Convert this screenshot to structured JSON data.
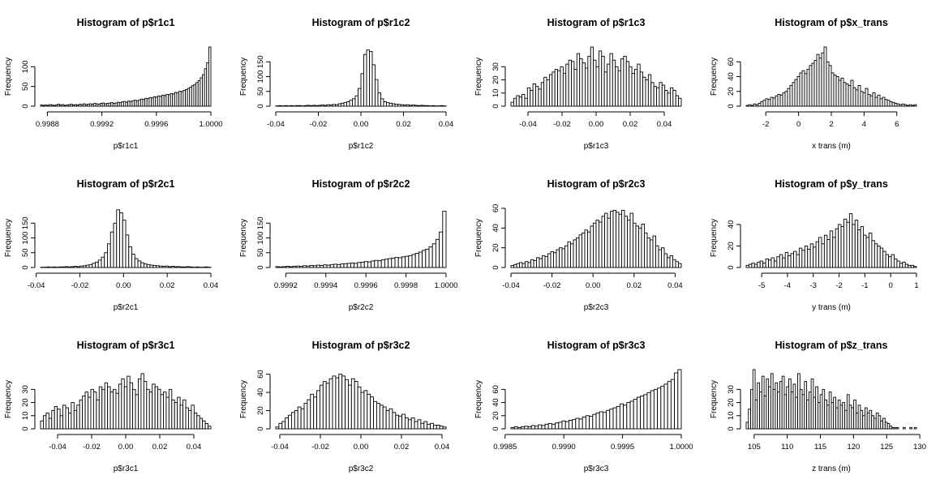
{
  "chart_data": [
    {
      "type": "bar",
      "title": "Histogram of p$r1c1",
      "xlabel": "p$r1c1",
      "ylabel": "Frequency",
      "xlim": [
        0.99875,
        1.0
      ],
      "ylim": [
        0,
        150
      ],
      "xticks": [
        0.9988,
        0.9992,
        0.9996,
        1.0
      ],
      "xtick_labels": [
        "0.9988",
        "0.9992",
        "0.9996",
        "1.0000"
      ],
      "yticks": [
        0,
        50,
        100
      ],
      "ytick_labels": [
        "0",
        "50",
        "100"
      ],
      "values": [
        3,
        2,
        3,
        2,
        4,
        3,
        2,
        3,
        5,
        3,
        4,
        2,
        3,
        4,
        5,
        3,
        4,
        3,
        5,
        4,
        6,
        4,
        5,
        6,
        5,
        7,
        6,
        5,
        7,
        8,
        6,
        7,
        8,
        9,
        7,
        8,
        10,
        9,
        11,
        12,
        10,
        13,
        12,
        14,
        15,
        13,
        16,
        18,
        17,
        20,
        19,
        22,
        21,
        24,
        23,
        26,
        25,
        28,
        27,
        30,
        29,
        32,
        31,
        35,
        34,
        38,
        37,
        40,
        42,
        45,
        48,
        52,
        55,
        60,
        65,
        72,
        80,
        95,
        110,
        150
      ]
    },
    {
      "type": "bar",
      "title": "Histogram of p$r1c2",
      "xlabel": "p$r1c2",
      "ylabel": "Frequency",
      "xlim": [
        -0.04,
        0.04
      ],
      "ylim": [
        0,
        200
      ],
      "xticks": [
        -0.04,
        -0.02,
        0,
        0.02,
        0.04
      ],
      "xtick_labels": [
        "-0.04",
        "-0.02",
        "0.00",
        "0.02",
        "0.04"
      ],
      "yticks": [
        0,
        50,
        100,
        150
      ],
      "ytick_labels": [
        "0",
        "50",
        "100",
        "150"
      ],
      "values": [
        1,
        2,
        1,
        2,
        1,
        2,
        1,
        2,
        2,
        1,
        2,
        3,
        2,
        3,
        2,
        3,
        4,
        3,
        5,
        4,
        6,
        5,
        8,
        10,
        12,
        15,
        20,
        25,
        35,
        60,
        110,
        175,
        190,
        185,
        140,
        90,
        45,
        25,
        15,
        12,
        10,
        8,
        7,
        6,
        5,
        4,
        5,
        3,
        4,
        3,
        2,
        3,
        2,
        2,
        1,
        2,
        1,
        1,
        2,
        1
      ]
    },
    {
      "type": "bar",
      "title": "Histogram of p$r1c3",
      "xlabel": "p$r1c3",
      "ylabel": "Frequency",
      "xlim": [
        -0.05,
        0.05
      ],
      "ylim": [
        0,
        45
      ],
      "xticks": [
        -0.04,
        -0.02,
        0,
        0.02,
        0.04
      ],
      "xtick_labels": [
        "-0.04",
        "-0.02",
        "0.00",
        "0.02",
        "0.04"
      ],
      "yticks": [
        0,
        10,
        20,
        30
      ],
      "ytick_labels": [
        "0",
        "10",
        "20",
        "30"
      ],
      "values": [
        3,
        6,
        8,
        7,
        9,
        6,
        14,
        12,
        17,
        15,
        13,
        18,
        22,
        20,
        24,
        26,
        28,
        27,
        30,
        25,
        32,
        35,
        34,
        28,
        40,
        36,
        33,
        29,
        38,
        45,
        35,
        30,
        42,
        38,
        26,
        32,
        40,
        35,
        30,
        27,
        36,
        38,
        34,
        30,
        25,
        28,
        32,
        26,
        22,
        20,
        24,
        18,
        15,
        14,
        18,
        16,
        12,
        10,
        14,
        12,
        8,
        6
      ]
    },
    {
      "type": "bar",
      "title": "Histogram of p$x_trans",
      "xlabel": "x trans (m)",
      "ylabel": "Frequency",
      "xlim": [
        -3.2,
        7.2
      ],
      "ylim": [
        0,
        80
      ],
      "xticks": [
        -2,
        0,
        2,
        4,
        6
      ],
      "xtick_labels": [
        "-2",
        "0",
        "2",
        "4",
        "6"
      ],
      "yticks": [
        0,
        20,
        40,
        60
      ],
      "ytick_labels": [
        "0",
        "20",
        "40",
        "60"
      ],
      "values": [
        1,
        2,
        1,
        3,
        2,
        4,
        6,
        8,
        10,
        9,
        12,
        11,
        14,
        16,
        15,
        18,
        20,
        24,
        28,
        32,
        36,
        40,
        45,
        48,
        44,
        50,
        55,
        58,
        62,
        70,
        65,
        72,
        80,
        60,
        55,
        45,
        42,
        40,
        35,
        38,
        32,
        30,
        28,
        35,
        25,
        22,
        28,
        20,
        18,
        24,
        16,
        14,
        18,
        12,
        15,
        10,
        12,
        9,
        8,
        6,
        5,
        4,
        3,
        2,
        3,
        2,
        1,
        2,
        1,
        2
      ]
    },
    {
      "type": "bar",
      "title": "Histogram of p$r2c1",
      "xlabel": "p$r2c1",
      "ylabel": "Frequency",
      "xlim": [
        -0.038,
        0.04
      ],
      "ylim": [
        0,
        200
      ],
      "xticks": [
        -0.04,
        -0.02,
        0,
        0.02,
        0.04
      ],
      "xtick_labels": [
        "-0.04",
        "-0.02",
        "0.00",
        "0.02",
        "0.04"
      ],
      "yticks": [
        0,
        50,
        100,
        150
      ],
      "ytick_labels": [
        "0",
        "50",
        "100",
        "150"
      ],
      "values": [
        1,
        1,
        2,
        1,
        2,
        1,
        2,
        2,
        3,
        2,
        3,
        4,
        3,
        5,
        6,
        8,
        10,
        14,
        18,
        25,
        35,
        50,
        80,
        120,
        150,
        195,
        185,
        160,
        110,
        70,
        45,
        30,
        22,
        16,
        12,
        10,
        8,
        7,
        6,
        5,
        4,
        5,
        3,
        4,
        3,
        3,
        2,
        2,
        3,
        2,
        1,
        2,
        1,
        1,
        2,
        1
      ]
    },
    {
      "type": "bar",
      "title": "Histogram of p$r2c2",
      "xlabel": "p$r2c2",
      "ylabel": "Frequency",
      "xlim": [
        0.99915,
        1.0
      ],
      "ylim": [
        0,
        200
      ],
      "xticks": [
        0.9992,
        0.9994,
        0.9996,
        0.9998,
        1.0
      ],
      "xtick_labels": [
        "0.9992",
        "0.9994",
        "0.9996",
        "0.9998",
        "1.0000"
      ],
      "yticks": [
        0,
        50,
        100,
        150
      ],
      "ytick_labels": [
        "0",
        "50",
        "100",
        "150"
      ],
      "values": [
        3,
        2,
        3,
        4,
        3,
        4,
        5,
        4,
        6,
        5,
        7,
        6,
        8,
        7,
        9,
        8,
        10,
        11,
        10,
        12,
        13,
        14,
        15,
        14,
        17,
        18,
        20,
        19,
        22,
        24,
        23,
        26,
        28,
        30,
        32,
        34,
        33,
        36,
        38,
        40,
        44,
        48,
        52,
        58,
        62,
        70,
        80,
        95,
        120,
        190
      ]
    },
    {
      "type": "bar",
      "title": "Histogram of p$r2c3",
      "xlabel": "p$r2c3",
      "ylabel": "Frequency",
      "xlim": [
        -0.04,
        0.043
      ],
      "ylim": [
        0,
        60
      ],
      "xticks": [
        -0.04,
        -0.02,
        0,
        0.02,
        0.04
      ],
      "xtick_labels": [
        "-0.04",
        "-0.02",
        "0.00",
        "0.02",
        "0.04"
      ],
      "yticks": [
        0,
        20,
        40,
        60
      ],
      "ytick_labels": [
        "0",
        "20",
        "40",
        "60"
      ],
      "values": [
        2,
        3,
        4,
        5,
        4,
        6,
        5,
        8,
        7,
        10,
        9,
        12,
        11,
        14,
        16,
        15,
        18,
        20,
        19,
        22,
        26,
        24,
        28,
        30,
        33,
        35,
        38,
        36,
        42,
        45,
        48,
        46,
        52,
        55,
        50,
        57,
        58,
        56,
        54,
        58,
        52,
        48,
        55,
        45,
        42,
        40,
        44,
        35,
        30,
        28,
        32,
        22,
        18,
        20,
        14,
        10,
        12,
        8,
        6,
        4
      ]
    },
    {
      "type": "bar",
      "title": "Histogram of p$y_trans",
      "xlabel": "y trans (m)",
      "ylabel": "Frequency",
      "xlim": [
        -5.6,
        1.0
      ],
      "ylim": [
        0,
        55
      ],
      "xticks": [
        -5,
        -4,
        -3,
        -2,
        -1,
        0,
        1
      ],
      "xtick_labels": [
        "-5",
        "-4",
        "-3",
        "-2",
        "-1",
        "0",
        "1"
      ],
      "yticks": [
        0,
        20,
        40
      ],
      "ytick_labels": [
        "0",
        "20",
        "40"
      ],
      "values": [
        2,
        3,
        4,
        3,
        5,
        6,
        4,
        8,
        7,
        9,
        6,
        10,
        12,
        9,
        14,
        11,
        13,
        15,
        12,
        18,
        16,
        20,
        17,
        22,
        19,
        24,
        28,
        22,
        30,
        26,
        34,
        28,
        36,
        40,
        38,
        45,
        42,
        50,
        40,
        44,
        35,
        38,
        30,
        28,
        32,
        25,
        22,
        20,
        18,
        15,
        12,
        10,
        12,
        8,
        6,
        4,
        5,
        3,
        2,
        2,
        1
      ]
    },
    {
      "type": "bar",
      "title": "Histogram of p$r3c1",
      "xlabel": "p$r3c1",
      "ylabel": "Frequency",
      "xlim": [
        -0.05,
        0.05
      ],
      "ylim": [
        0,
        45
      ],
      "xticks": [
        -0.04,
        -0.02,
        0,
        0.02,
        0.04
      ],
      "xtick_labels": [
        "-0.04",
        "-0.02",
        "0.00",
        "0.02",
        "0.04"
      ],
      "yticks": [
        0,
        10,
        20,
        30
      ],
      "ytick_labels": [
        "0",
        "10",
        "20",
        "30"
      ],
      "values": [
        6,
        10,
        12,
        8,
        14,
        17,
        15,
        10,
        18,
        16,
        12,
        20,
        14,
        18,
        22,
        25,
        28,
        24,
        30,
        28,
        22,
        32,
        30,
        35,
        32,
        28,
        30,
        27,
        34,
        38,
        32,
        40,
        35,
        30,
        26,
        38,
        42,
        36,
        30,
        28,
        34,
        32,
        30,
        26,
        28,
        24,
        30,
        22,
        20,
        24,
        18,
        22,
        16,
        14,
        18,
        12,
        10,
        8,
        6,
        4,
        2
      ]
    },
    {
      "type": "bar",
      "title": "Histogram of p$r3c2",
      "xlabel": "p$r3c2",
      "ylabel": "Frequency",
      "xlim": [
        -0.042,
        0.042
      ],
      "ylim": [
        0,
        65
      ],
      "xticks": [
        -0.04,
        -0.02,
        0,
        0.02,
        0.04
      ],
      "xtick_labels": [
        "-0.04",
        "-0.02",
        "0.00",
        "0.02",
        "0.04"
      ],
      "yticks": [
        0,
        20,
        40,
        60
      ],
      "ytick_labels": [
        "0",
        "20",
        "40",
        "60"
      ],
      "values": [
        2,
        6,
        8,
        12,
        15,
        18,
        20,
        24,
        22,
        28,
        32,
        38,
        35,
        42,
        48,
        52,
        50,
        55,
        58,
        56,
        60,
        58,
        54,
        48,
        55,
        52,
        46,
        40,
        42,
        38,
        35,
        30,
        28,
        26,
        24,
        20,
        22,
        18,
        15,
        14,
        16,
        12,
        10,
        12,
        8,
        10,
        6,
        8,
        5,
        6,
        4,
        4,
        3,
        2
      ]
    },
    {
      "type": "bar",
      "title": "Histogram of p$r3c3",
      "xlabel": "p$r3c3",
      "ylabel": "Frequency",
      "xlim": [
        0.99855,
        1.0
      ],
      "ylim": [
        0,
        90
      ],
      "xticks": [
        0.9985,
        0.999,
        0.9995,
        1.0
      ],
      "xtick_labels": [
        "0.9985",
        "0.9990",
        "0.9995",
        "1.0000"
      ],
      "yticks": [
        0,
        20,
        40,
        60
      ],
      "ytick_labels": [
        "0",
        "20",
        "40",
        "60"
      ],
      "values": [
        2,
        3,
        2,
        3,
        4,
        3,
        5,
        4,
        6,
        5,
        7,
        8,
        7,
        9,
        10,
        12,
        11,
        13,
        14,
        16,
        15,
        18,
        20,
        19,
        22,
        24,
        26,
        25,
        28,
        30,
        32,
        34,
        38,
        36,
        40,
        42,
        45,
        48,
        50,
        52,
        55,
        58,
        60,
        62,
        65,
        68,
        72,
        75,
        85,
        90
      ]
    },
    {
      "type": "bar",
      "title": "Histogram of p$z_trans",
      "xlabel": "z trans (m)",
      "ylabel": "Frequency",
      "xlim": [
        103.8,
        129.5
      ],
      "ylim": [
        0,
        45
      ],
      "xticks": [
        105,
        110,
        115,
        120,
        125,
        130
      ],
      "xtick_labels": [
        "105",
        "110",
        "115",
        "120",
        "125",
        "130"
      ],
      "yticks": [
        0,
        10,
        20,
        30
      ],
      "ytick_labels": [
        "0",
        "10",
        "20",
        "30"
      ],
      "values": [
        5,
        15,
        30,
        45,
        22,
        35,
        28,
        40,
        25,
        38,
        32,
        42,
        30,
        35,
        28,
        36,
        40,
        26,
        32,
        38,
        28,
        34,
        24,
        42,
        30,
        26,
        36,
        22,
        28,
        38,
        24,
        32,
        20,
        26,
        30,
        22,
        18,
        28,
        20,
        24,
        16,
        22,
        18,
        20,
        14,
        26,
        18,
        16,
        22,
        12,
        18,
        14,
        10,
        16,
        12,
        14,
        10,
        8,
        12,
        10,
        6,
        8,
        5,
        4,
        2,
        1,
        1,
        1,
        0,
        0,
        1,
        0,
        0,
        1,
        0,
        1
      ]
    }
  ]
}
